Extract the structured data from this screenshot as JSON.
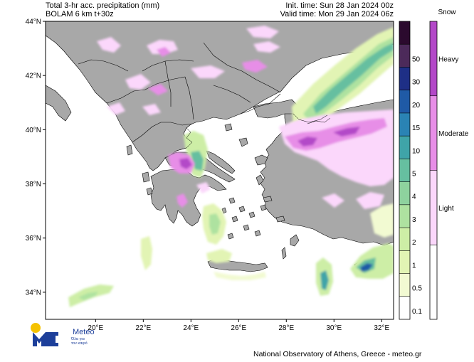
{
  "header": {
    "title_line1": "Total 3-hr acc. precipitation (mm)",
    "title_line2": "BOLAM 6 km t+30z",
    "init_time": "Init. time: Sun 28 Jan 2024 00z",
    "valid_time": "Valid time: Mon 29 Jan 2024 06z"
  },
  "map": {
    "lat_ticks": [
      "44°N",
      "42°N",
      "40°N",
      "38°N",
      "36°N",
      "34°N"
    ],
    "lon_ticks": [
      "20°E",
      "22°E",
      "24°E",
      "26°E",
      "28°E",
      "30°E",
      "32°E"
    ],
    "extent": {
      "lon": [
        17.9,
        32.5
      ],
      "lat": [
        33.0,
        44.0
      ]
    },
    "colors": {
      "sea": "#ffffff",
      "land": "#a8a8a8",
      "border": "#000000"
    }
  },
  "precip_legend": {
    "levels": [
      "0.1",
      "0.5",
      "1",
      "2",
      "3",
      "4",
      "5",
      "10",
      "15",
      "20",
      "30",
      "50"
    ],
    "colors": [
      "#ffffff",
      "#f2fad2",
      "#e2f4b4",
      "#cdeea6",
      "#aee2a0",
      "#8ed29e",
      "#66bfa0",
      "#3fa4a8",
      "#2a83b4",
      "#1f5aa6",
      "#1e2f86",
      "#4c2a5a",
      "#2b0a2e"
    ]
  },
  "snow_legend": {
    "title": "Snow",
    "categories": [
      "Light",
      "Moderate",
      "Heavy"
    ],
    "colors": [
      "#ffffff",
      "#fbd7fb",
      "#e78ee7",
      "#b348c8"
    ]
  },
  "footer": {
    "credit": "National Observatory of Athens, Greece - meteo.gr"
  },
  "logo": {
    "name": "Meteo",
    "tagline1": "Όλα για",
    "tagline2": "τον καιρό"
  }
}
